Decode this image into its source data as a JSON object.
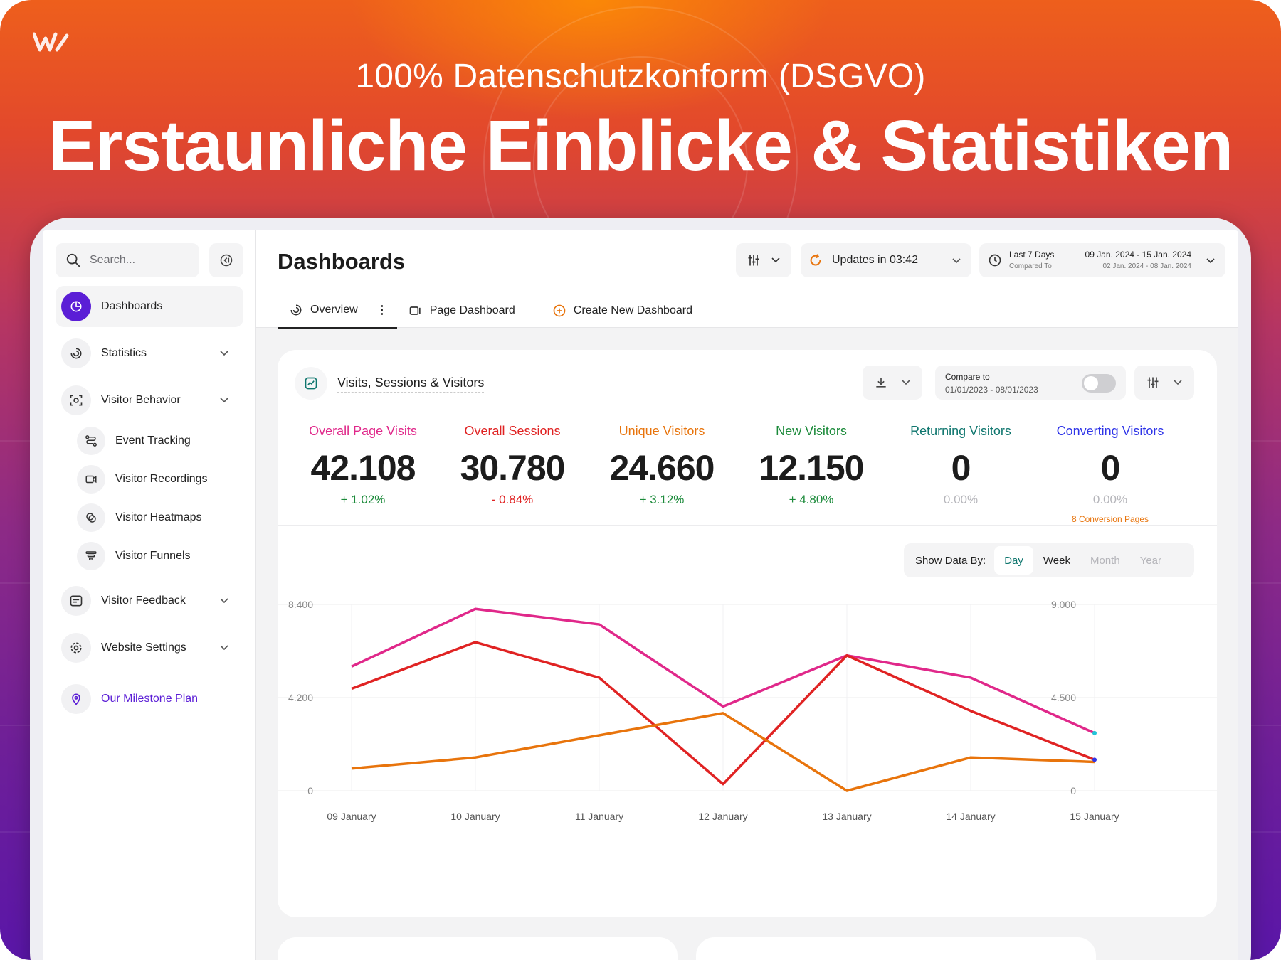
{
  "hero": {
    "subtitle": "100% Datenschutzkonform (DSGVO)",
    "title": "Erstaunliche Einblicke & Statistiken"
  },
  "colors": {
    "accent": "#5b1ed6",
    "pink": "#e0288a",
    "red": "#e02323",
    "orange": "#e8740c",
    "green": "#1b8a3a",
    "teal": "#0f766e",
    "blue": "#2f35e8"
  },
  "sidebar": {
    "search_placeholder": "Search...",
    "items": [
      {
        "label": "Dashboards",
        "icon": "pie-chart-icon"
      },
      {
        "label": "Statistics",
        "icon": "spiral-icon"
      },
      {
        "label": "Visitor Behavior",
        "icon": "eye-scan-icon"
      },
      {
        "label": "Event Tracking",
        "icon": "route-icon"
      },
      {
        "label": "Visitor Recordings",
        "icon": "video-icon"
      },
      {
        "label": "Visitor Heatmaps",
        "icon": "heatmap-icon"
      },
      {
        "label": "Visitor Funnels",
        "icon": "funnel-icon"
      },
      {
        "label": "Visitor Feedback",
        "icon": "feedback-icon"
      },
      {
        "label": "Website Settings",
        "icon": "gear-icon"
      },
      {
        "label": "Our Milestone Plan",
        "icon": "map-pin-icon"
      }
    ]
  },
  "header": {
    "title": "Dashboards",
    "update_label": "Updates in 03:42",
    "range_label": "Last 7 Days",
    "compared_label": "Compared To",
    "range_dates": "09 Jan. 2024 - 15 Jan. 2024",
    "compared_dates": "02 Jan. 2024 - 08 Jan. 2024"
  },
  "tabs": [
    {
      "label": "Overview"
    },
    {
      "label": "Page Dashboard"
    },
    {
      "label": "Create New Dashboard"
    }
  ],
  "card": {
    "title": "Visits, Sessions & Visitors",
    "compare_label": "Compare to",
    "compare_dates": "01/01/2023 - 08/01/2023"
  },
  "stats": [
    {
      "label": "Overall Page Visits",
      "value": "42.108",
      "change": "+ 1.02%",
      "color": "#e0288a",
      "change_color": "#1b8a3a"
    },
    {
      "label": "Overall Sessions",
      "value": "30.780",
      "change": "- 0.84%",
      "color": "#e02323",
      "change_color": "#e02323"
    },
    {
      "label": "Unique Visitors",
      "value": "24.660",
      "change": "+ 3.12%",
      "color": "#e8740c",
      "change_color": "#1b8a3a"
    },
    {
      "label": "New Visitors",
      "value": "12.150",
      "change": "+ 4.80%",
      "color": "#1b8a3a",
      "change_color": "#1b8a3a"
    },
    {
      "label": "Returning Visitors",
      "value": "0",
      "change": "0.00%",
      "color": "#0f766e",
      "change_color": "#b5b5ba"
    },
    {
      "label": "Converting Visitors",
      "value": "0",
      "change": "0.00%",
      "color": "#2f35e8",
      "change_color": "#b5b5ba",
      "note": "8 Conversion Pages"
    }
  ],
  "show_data": {
    "label": "Show Data By:",
    "options": [
      "Day",
      "Week",
      "Month",
      "Year"
    ],
    "selected": "Day"
  },
  "chart_data": {
    "type": "line",
    "categories": [
      "09 January",
      "10 January",
      "11 January",
      "12 January",
      "13 January",
      "14 January",
      "15 January"
    ],
    "left_ticks": [
      "8.400",
      "4.200",
      "0"
    ],
    "right_ticks": [
      "9.000",
      "4.500",
      "0"
    ],
    "ylim_left": [
      0,
      8400
    ],
    "ylim_right": [
      0,
      9000
    ],
    "grid": true,
    "series": [
      {
        "color": "#e0288a",
        "values": [
          5600,
          8200,
          7500,
          3800,
          6100,
          5100,
          2600
        ]
      },
      {
        "color": "#e02323",
        "values": [
          4600,
          6700,
          5100,
          300,
          6100,
          3600,
          1400
        ]
      },
      {
        "color": "#e8740c",
        "values": [
          1000,
          1500,
          2500,
          3500,
          0,
          1500,
          1300
        ]
      }
    ]
  }
}
